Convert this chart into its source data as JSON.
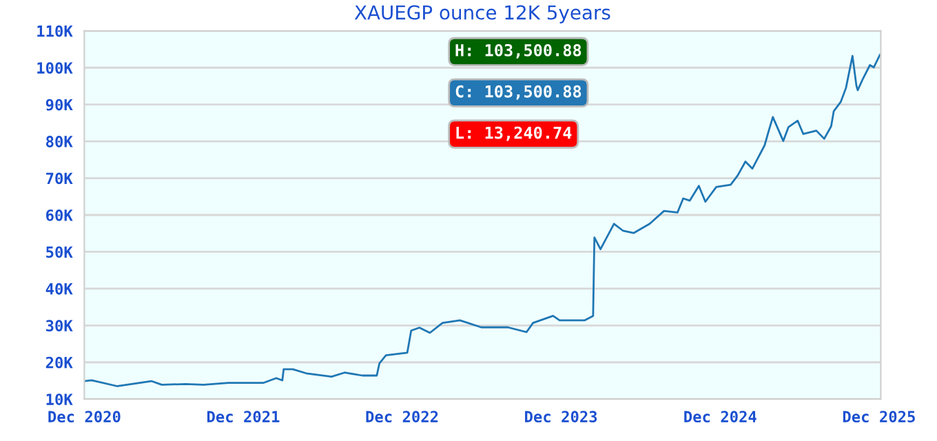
{
  "chart_data": {
    "type": "line",
    "title": "XAUEGP ounce 12K 5years",
    "annotations": [
      "H: 103,500.88",
      "C: 103,500.88",
      "L: 13,240.74"
    ],
    "x": [
      "2020-12-01",
      "2020-12-18",
      "2021-02-15",
      "2021-05-04",
      "2021-05-28",
      "2021-07-22",
      "2021-09-01",
      "2021-10-28",
      "2022-01-16",
      "2022-02-15",
      "2022-03-01",
      "2022-03-04",
      "2022-03-25",
      "2022-04-25",
      "2022-06-22",
      "2022-07-22",
      "2022-09-01",
      "2022-10-04",
      "2022-10-10",
      "2022-10-25",
      "2022-12-13",
      "2022-12-22",
      "2023-01-10",
      "2023-02-03",
      "2023-03-04",
      "2023-04-13",
      "2023-06-01",
      "2023-08-01",
      "2023-09-13",
      "2023-09-28",
      "2023-11-13",
      "2023-11-28",
      "2024-01-25",
      "2024-02-13",
      "2024-02-16",
      "2024-03-01",
      "2024-04-01",
      "2024-04-22",
      "2024-05-16",
      "2024-06-22",
      "2024-07-25",
      "2024-08-25",
      "2024-09-07",
      "2024-09-22",
      "2024-10-13",
      "2024-10-28",
      "2024-11-22",
      "2024-12-25",
      "2025-01-10",
      "2025-01-28",
      "2025-02-13",
      "2025-03-13",
      "2025-03-22",
      "2025-04-01",
      "2025-04-25",
      "2025-05-07",
      "2025-05-28",
      "2025-06-10",
      "2025-07-10",
      "2025-07-28",
      "2025-08-13",
      "2025-08-19",
      "2025-09-04",
      "2025-09-16",
      "2025-10-01",
      "2025-10-10",
      "2025-10-13",
      "2025-10-25",
      "2025-11-10",
      "2025-11-19",
      "2025-12-03"
    ],
    "series": [
      {
        "color": "#1f77b4",
        "values": [
          14900,
          15100,
          13500,
          14900,
          13900,
          14100,
          13900,
          14400,
          14400,
          15700,
          15100,
          18100,
          18100,
          17000,
          16100,
          17200,
          16400,
          16400,
          19700,
          21900,
          22600,
          28600,
          29400,
          28000,
          30700,
          31400,
          29500,
          29500,
          28200,
          30700,
          32600,
          31400,
          31400,
          32600,
          53900,
          50700,
          57600,
          55700,
          55100,
          57600,
          61100,
          60700,
          64500,
          63900,
          67900,
          63600,
          67600,
          68200,
          70700,
          74500,
          72600,
          78900,
          82600,
          86600,
          80100,
          83900,
          85600,
          82000,
          82900,
          80700,
          84100,
          88200,
          90700,
          94500,
          103200,
          95100,
          93900,
          97000,
          100700,
          100100,
          103500
        ]
      }
    ],
    "xlim": [
      "2020-12-01",
      "2025-12-05"
    ],
    "xticks": [
      {
        "value": "2020-12-01",
        "label": "Dec 2020"
      },
      {
        "value": "2021-12-01",
        "label": "Dec 2021"
      },
      {
        "value": "2022-12-01",
        "label": "Dec 2022"
      },
      {
        "value": "2023-12-01",
        "label": "Dec 2023"
      },
      {
        "value": "2024-12-01",
        "label": "Dec 2024"
      },
      {
        "value": "2025-12-01",
        "label": "Dec 2025"
      }
    ],
    "ylim": [
      10000,
      110000
    ],
    "yticks": [
      {
        "value": 10000,
        "label": "10K"
      },
      {
        "value": 20000,
        "label": "20K"
      },
      {
        "value": 30000,
        "label": "30K"
      },
      {
        "value": 40000,
        "label": "40K"
      },
      {
        "value": 50000,
        "label": "50K"
      },
      {
        "value": 60000,
        "label": "60K"
      },
      {
        "value": 70000,
        "label": "70K"
      },
      {
        "value": 80000,
        "label": "80K"
      },
      {
        "value": 90000,
        "label": "90K"
      },
      {
        "value": 100000,
        "label": "100K"
      },
      {
        "value": 110000,
        "label": "110K"
      }
    ],
    "grid": "y",
    "marker": "none",
    "line_style": "solid"
  }
}
